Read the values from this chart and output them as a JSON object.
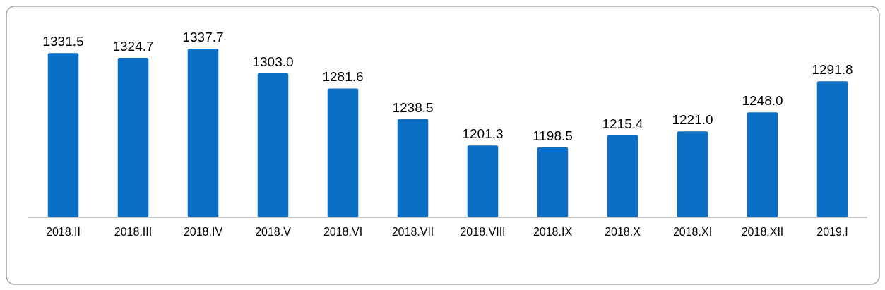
{
  "chart_data": {
    "type": "bar",
    "categories": [
      "2018.II",
      "2018.III",
      "2018.IV",
      "2018.V",
      "2018.VI",
      "2018.VII",
      "2018.VIII",
      "2018.IX",
      "2018.X",
      "2018.XI",
      "2018.XII",
      "2019.I"
    ],
    "values": [
      1331.5,
      1324.7,
      1337.7,
      1303.0,
      1281.6,
      1238.5,
      1201.3,
      1198.5,
      1215.4,
      1221.0,
      1248.0,
      1291.8
    ],
    "value_labels": [
      "1331.5",
      "1324.7",
      "1337.7",
      "1303.0",
      "1281.6",
      "1238.5",
      "1201.3",
      "1198.5",
      "1215.4",
      "1221.0",
      "1248.0",
      "1291.8"
    ],
    "color": "#0b6fc6",
    "ylim": [
      1100,
      1337.7
    ]
  }
}
